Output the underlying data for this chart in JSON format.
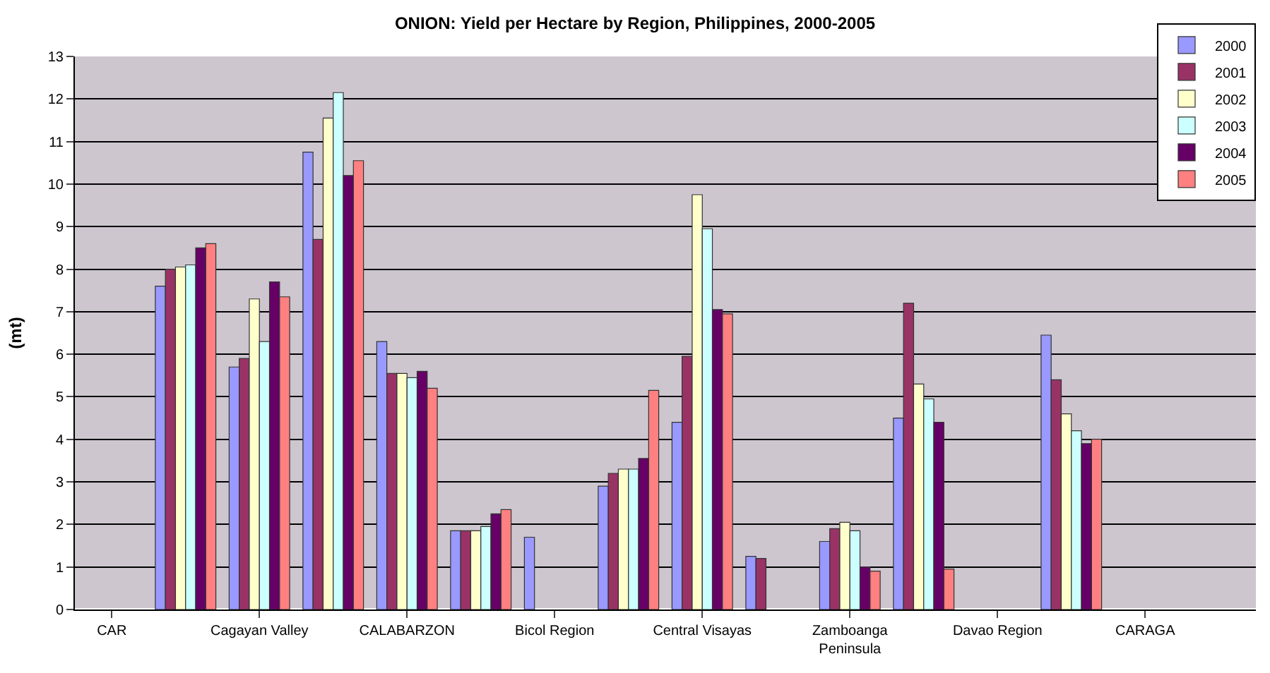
{
  "chart_data": {
    "type": "bar",
    "title": "ONION: Yield per Hectare by Region, Philippines, 2000-2005",
    "ylabel": "(mt)",
    "categories": [
      "CAR",
      null,
      "Cagayan Valley",
      null,
      "CALABARZON",
      null,
      "Bicol Region",
      null,
      "Central Visayas",
      null,
      "Zamboanga Peninsula",
      null,
      "Davao Region",
      null,
      "CARAGA",
      null
    ],
    "series": [
      {
        "name": "2000",
        "color": "#9999ff",
        "values": [
          null,
          7.6,
          5.7,
          10.75,
          6.3,
          1.85,
          1.7,
          2.9,
          4.4,
          1.25,
          1.6,
          4.5,
          null,
          6.45,
          null,
          null
        ]
      },
      {
        "name": "2001",
        "color": "#993366",
        "values": [
          null,
          8.0,
          5.9,
          8.7,
          5.55,
          1.85,
          null,
          3.2,
          5.95,
          1.2,
          1.9,
          7.2,
          null,
          5.4,
          null,
          null
        ]
      },
      {
        "name": "2002",
        "color": "#ffffcc",
        "values": [
          null,
          8.05,
          7.3,
          11.55,
          5.55,
          1.85,
          null,
          3.3,
          9.75,
          null,
          2.05,
          5.3,
          null,
          4.6,
          null,
          null
        ]
      },
      {
        "name": "2003",
        "color": "#ccffff",
        "values": [
          null,
          8.1,
          6.3,
          12.15,
          5.45,
          1.95,
          null,
          3.3,
          8.95,
          null,
          1.85,
          4.95,
          null,
          4.2,
          null,
          null
        ]
      },
      {
        "name": "2004",
        "color": "#660066",
        "values": [
          null,
          8.5,
          7.7,
          10.2,
          5.6,
          2.25,
          null,
          3.55,
          7.05,
          null,
          1.0,
          4.4,
          null,
          3.9,
          null,
          null
        ]
      },
      {
        "name": "2005",
        "color": "#ff8080",
        "values": [
          null,
          8.6,
          7.35,
          10.55,
          5.2,
          2.35,
          null,
          5.15,
          6.95,
          null,
          0.9,
          0.95,
          null,
          4.0,
          null,
          null
        ]
      }
    ],
    "ylim": [
      0,
      13
    ],
    "yticks": [
      0,
      1,
      2,
      3,
      4,
      5,
      6,
      7,
      8,
      9,
      10,
      11,
      12,
      13
    ],
    "grid": "y",
    "legend": "top right"
  }
}
